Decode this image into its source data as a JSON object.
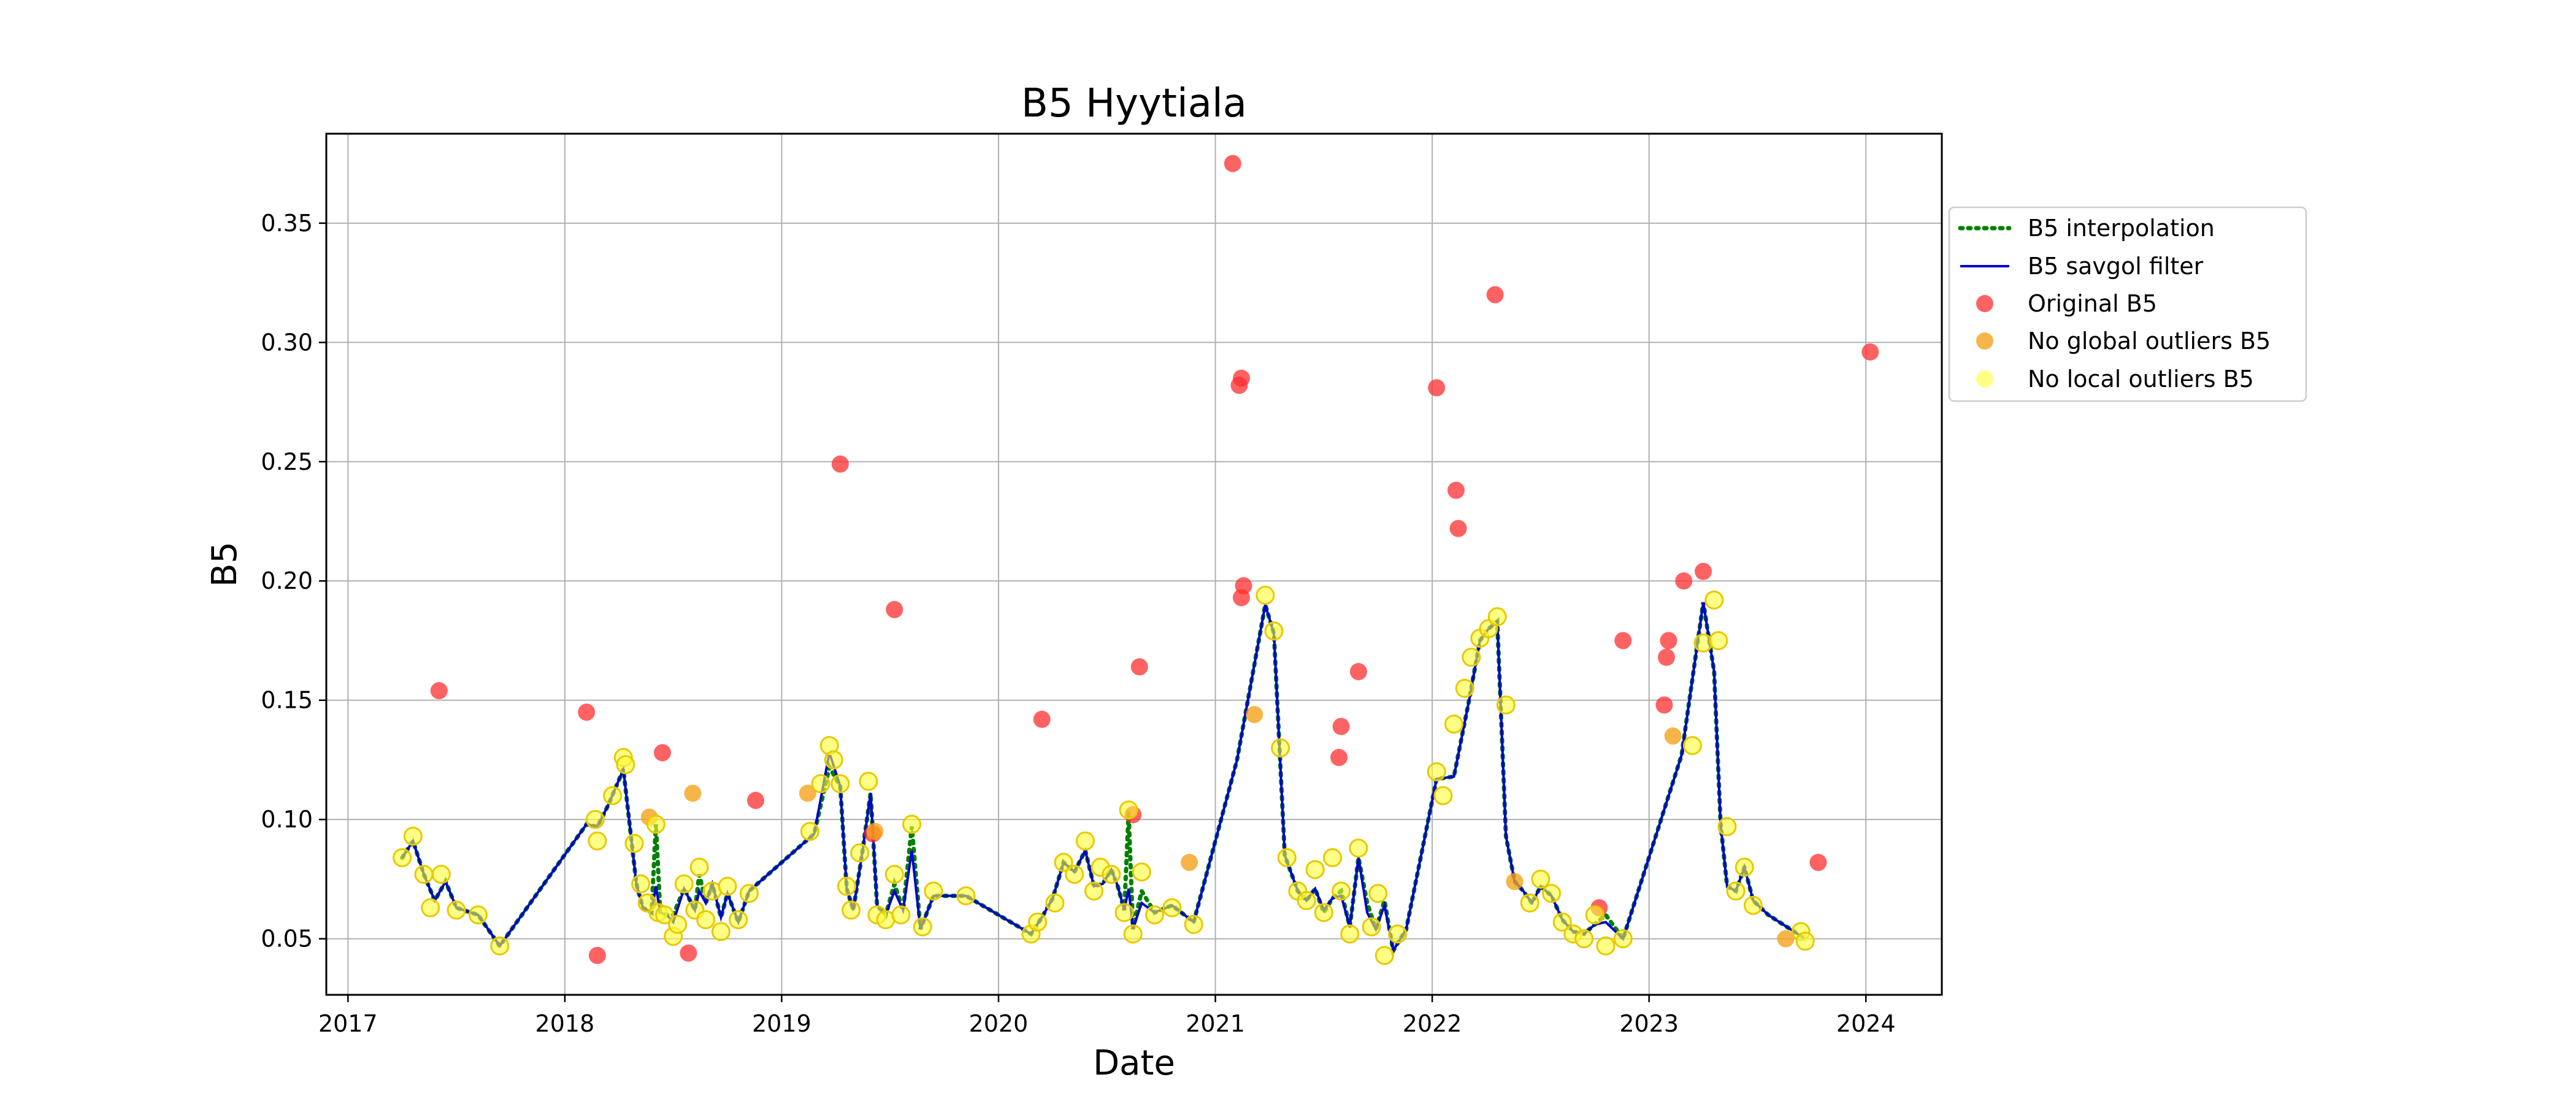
{
  "chart_data": {
    "type": "scatter",
    "title": "B5 Hyytiala",
    "xlabel": "Date",
    "ylabel": "B5",
    "xlim": [
      2016.9,
      2024.35
    ],
    "ylim": [
      0.0265,
      0.3875
    ],
    "x_ticks": [
      2017,
      2018,
      2019,
      2020,
      2021,
      2022,
      2023,
      2024
    ],
    "y_ticks": [
      0.05,
      0.1,
      0.15,
      0.2,
      0.25,
      0.3,
      0.35
    ],
    "x_tick_labels": [
      "2017",
      "2018",
      "2019",
      "2020",
      "2021",
      "2022",
      "2023",
      "2024"
    ],
    "y_tick_labels": [
      "0.05",
      "0.10",
      "0.15",
      "0.20",
      "0.25",
      "0.30",
      "0.35"
    ],
    "grid": true,
    "legend_position": "right-outside-top",
    "colors": {
      "interpolation": "#008000",
      "savgol": "#0000cc",
      "original": "#ff2d2d",
      "no_global": "#f5a21b",
      "no_local": "#ffff33"
    },
    "series": [
      {
        "name": "B5 interpolation",
        "style": "dotted-line",
        "x": [
          2017.25,
          2017.3,
          2017.35,
          2017.4,
          2017.45,
          2017.5,
          2017.6,
          2017.7,
          2018.1,
          2018.15,
          2018.2,
          2018.27,
          2018.33,
          2018.36,
          2018.4,
          2018.42,
          2018.44,
          2018.47,
          2018.5,
          2018.55,
          2018.6,
          2018.62,
          2018.65,
          2018.68,
          2018.72,
          2018.75,
          2018.8,
          2018.85,
          2019.15,
          2019.22,
          2019.27,
          2019.3,
          2019.33,
          2019.37,
          2019.41,
          2019.44,
          2019.48,
          2019.52,
          2019.56,
          2019.6,
          2019.64,
          2019.7,
          2019.85,
          2020.15,
          2020.2,
          2020.25,
          2020.3,
          2020.35,
          2020.4,
          2020.44,
          2020.48,
          2020.52,
          2020.55,
          2020.58,
          2020.6,
          2020.62,
          2020.66,
          2020.72,
          2020.8,
          2020.9,
          2021.1,
          2021.23,
          2021.27,
          2021.32,
          2021.38,
          2021.42,
          2021.46,
          2021.5,
          2021.54,
          2021.58,
          2021.62,
          2021.66,
          2021.7,
          2021.74,
          2021.78,
          2021.82,
          2021.88,
          2022.02,
          2022.1,
          2022.17,
          2022.22,
          2022.26,
          2022.3,
          2022.34,
          2022.38,
          2022.42,
          2022.46,
          2022.5,
          2022.55,
          2022.6,
          2022.65,
          2022.7,
          2022.75,
          2022.8,
          2022.88,
          2023.15,
          2023.25,
          2023.3,
          2023.33,
          2023.36,
          2023.4,
          2023.44,
          2023.48,
          2023.55,
          2023.72
        ],
        "values": [
          0.084,
          0.091,
          0.077,
          0.066,
          0.074,
          0.063,
          0.06,
          0.047,
          0.098,
          0.097,
          0.106,
          0.121,
          0.073,
          0.063,
          0.061,
          0.098,
          0.061,
          0.06,
          0.06,
          0.071,
          0.062,
          0.077,
          0.065,
          0.073,
          0.059,
          0.069,
          0.057,
          0.07,
          0.094,
          0.122,
          0.114,
          0.071,
          0.062,
          0.085,
          0.111,
          0.064,
          0.06,
          0.073,
          0.062,
          0.097,
          0.054,
          0.068,
          0.068,
          0.052,
          0.059,
          0.067,
          0.082,
          0.078,
          0.087,
          0.072,
          0.073,
          0.079,
          0.072,
          0.062,
          0.103,
          0.054,
          0.07,
          0.061,
          0.064,
          0.057,
          0.125,
          0.19,
          0.178,
          0.085,
          0.07,
          0.066,
          0.071,
          0.061,
          0.067,
          0.07,
          0.055,
          0.084,
          0.065,
          0.054,
          0.066,
          0.045,
          0.054,
          0.117,
          0.118,
          0.15,
          0.175,
          0.18,
          0.183,
          0.093,
          0.074,
          0.07,
          0.065,
          0.072,
          0.068,
          0.058,
          0.053,
          0.052,
          0.056,
          0.06,
          0.05,
          0.127,
          0.191,
          0.162,
          0.098,
          0.072,
          0.07,
          0.08,
          0.066,
          0.06,
          0.05
        ]
      },
      {
        "name": "B5 savgol filter",
        "style": "solid-line",
        "x": [
          2017.25,
          2017.3,
          2017.35,
          2017.4,
          2017.45,
          2017.5,
          2017.6,
          2017.7,
          2018.1,
          2018.15,
          2018.2,
          2018.27,
          2018.33,
          2018.36,
          2018.4,
          2018.42,
          2018.44,
          2018.47,
          2018.5,
          2018.55,
          2018.6,
          2018.62,
          2018.65,
          2018.68,
          2018.72,
          2018.75,
          2018.8,
          2018.85,
          2019.15,
          2019.22,
          2019.27,
          2019.3,
          2019.33,
          2019.37,
          2019.41,
          2019.44,
          2019.48,
          2019.52,
          2019.56,
          2019.6,
          2019.64,
          2019.7,
          2019.85,
          2020.15,
          2020.2,
          2020.25,
          2020.3,
          2020.35,
          2020.4,
          2020.44,
          2020.48,
          2020.52,
          2020.55,
          2020.58,
          2020.6,
          2020.62,
          2020.66,
          2020.72,
          2020.8,
          2020.9,
          2021.1,
          2021.23,
          2021.27,
          2021.32,
          2021.38,
          2021.42,
          2021.46,
          2021.5,
          2021.54,
          2021.58,
          2021.62,
          2021.66,
          2021.7,
          2021.74,
          2021.78,
          2021.82,
          2021.88,
          2022.02,
          2022.1,
          2022.17,
          2022.22,
          2022.26,
          2022.3,
          2022.34,
          2022.38,
          2022.42,
          2022.46,
          2022.5,
          2022.55,
          2022.6,
          2022.65,
          2022.7,
          2022.75,
          2022.8,
          2022.88,
          2023.15,
          2023.25,
          2023.3,
          2023.33,
          2023.36,
          2023.4,
          2023.44,
          2023.48,
          2023.55,
          2023.72
        ],
        "values": [
          0.084,
          0.091,
          0.077,
          0.066,
          0.074,
          0.063,
          0.06,
          0.047,
          0.098,
          0.097,
          0.106,
          0.121,
          0.073,
          0.063,
          0.061,
          0.072,
          0.061,
          0.06,
          0.057,
          0.071,
          0.062,
          0.07,
          0.065,
          0.073,
          0.059,
          0.069,
          0.057,
          0.07,
          0.094,
          0.128,
          0.114,
          0.071,
          0.062,
          0.085,
          0.111,
          0.064,
          0.06,
          0.07,
          0.062,
          0.087,
          0.054,
          0.068,
          0.068,
          0.052,
          0.059,
          0.067,
          0.082,
          0.078,
          0.087,
          0.072,
          0.073,
          0.079,
          0.072,
          0.062,
          0.071,
          0.054,
          0.065,
          0.061,
          0.064,
          0.057,
          0.125,
          0.19,
          0.178,
          0.085,
          0.07,
          0.066,
          0.071,
          0.062,
          0.067,
          0.068,
          0.055,
          0.084,
          0.061,
          0.054,
          0.064,
          0.045,
          0.054,
          0.117,
          0.118,
          0.15,
          0.175,
          0.18,
          0.183,
          0.093,
          0.074,
          0.07,
          0.065,
          0.072,
          0.068,
          0.058,
          0.053,
          0.052,
          0.056,
          0.057,
          0.05,
          0.127,
          0.191,
          0.162,
          0.098,
          0.072,
          0.07,
          0.08,
          0.066,
          0.06,
          0.05
        ]
      },
      {
        "name": "Original B5",
        "style": "points",
        "x": [
          2017.42,
          2018.1,
          2018.15,
          2018.45,
          2018.57,
          2018.88,
          2019.27,
          2019.52,
          2020.2,
          2020.65,
          2021.08,
          2021.11,
          2021.12,
          2021.13,
          2021.12,
          2021.57,
          2021.58,
          2021.66,
          2022.02,
          2022.11,
          2022.12,
          2022.29,
          2022.77,
          2022.88,
          2023.07,
          2023.08,
          2023.09,
          2023.16,
          2023.25,
          2023.78,
          2024.02,
          2019.42,
          2020.62
        ],
        "values": [
          0.154,
          0.145,
          0.043,
          0.128,
          0.044,
          0.108,
          0.249,
          0.188,
          0.142,
          0.164,
          0.375,
          0.282,
          0.285,
          0.198,
          0.193,
          0.126,
          0.139,
          0.162,
          0.281,
          0.238,
          0.222,
          0.32,
          0.063,
          0.175,
          0.148,
          0.168,
          0.175,
          0.2,
          0.204,
          0.082,
          0.296,
          0.094,
          0.102
        ]
      },
      {
        "name": "No global outliers B5",
        "style": "points",
        "x": [
          2018.39,
          2018.59,
          2019.12,
          2019.43,
          2020.88,
          2021.18,
          2022.38,
          2023.11,
          2023.63
        ],
        "values": [
          0.101,
          0.111,
          0.111,
          0.095,
          0.082,
          0.144,
          0.074,
          0.135,
          0.05
        ]
      },
      {
        "name": "No local outliers B5",
        "style": "points",
        "x": [
          2017.25,
          2017.3,
          2017.35,
          2017.38,
          2017.43,
          2017.5,
          2017.6,
          2017.7,
          2018.14,
          2018.15,
          2018.22,
          2018.27,
          2018.28,
          2018.32,
          2018.35,
          2018.38,
          2018.42,
          2018.43,
          2018.46,
          2018.5,
          2018.52,
          2018.55,
          2018.6,
          2018.62,
          2018.65,
          2018.68,
          2018.72,
          2018.75,
          2018.8,
          2018.85,
          2019.13,
          2019.18,
          2019.22,
          2019.24,
          2019.27,
          2019.3,
          2019.32,
          2019.36,
          2019.4,
          2019.44,
          2019.48,
          2019.52,
          2019.55,
          2019.6,
          2019.65,
          2019.7,
          2019.85,
          2020.15,
          2020.18,
          2020.26,
          2020.3,
          2020.35,
          2020.4,
          2020.44,
          2020.47,
          2020.52,
          2020.58,
          2020.6,
          2020.62,
          2020.66,
          2020.72,
          2020.8,
          2020.9,
          2021.23,
          2021.27,
          2021.3,
          2021.33,
          2021.38,
          2021.42,
          2021.46,
          2021.5,
          2021.54,
          2021.58,
          2021.62,
          2021.66,
          2021.72,
          2021.75,
          2021.78,
          2021.84,
          2022.02,
          2022.05,
          2022.1,
          2022.15,
          2022.18,
          2022.22,
          2022.26,
          2022.3,
          2022.34,
          2022.45,
          2022.5,
          2022.55,
          2022.6,
          2022.65,
          2022.7,
          2022.75,
          2022.8,
          2022.88,
          2023.2,
          2023.25,
          2023.3,
          2023.32,
          2023.36,
          2023.4,
          2023.44,
          2023.48,
          2023.7,
          2023.72
        ],
        "values": [
          0.084,
          0.093,
          0.077,
          0.063,
          0.077,
          0.062,
          0.06,
          0.047,
          0.1,
          0.091,
          0.11,
          0.126,
          0.123,
          0.09,
          0.073,
          0.065,
          0.098,
          0.061,
          0.06,
          0.051,
          0.056,
          0.073,
          0.062,
          0.08,
          0.058,
          0.07,
          0.053,
          0.072,
          0.058,
          0.069,
          0.095,
          0.115,
          0.131,
          0.125,
          0.115,
          0.072,
          0.062,
          0.086,
          0.116,
          0.06,
          0.058,
          0.077,
          0.06,
          0.098,
          0.055,
          0.07,
          0.068,
          0.052,
          0.057,
          0.065,
          0.082,
          0.077,
          0.091,
          0.07,
          0.08,
          0.077,
          0.061,
          0.104,
          0.052,
          0.078,
          0.06,
          0.063,
          0.056,
          0.194,
          0.179,
          0.13,
          0.084,
          0.07,
          0.066,
          0.079,
          0.061,
          0.084,
          0.07,
          0.052,
          0.088,
          0.055,
          0.069,
          0.043,
          0.052,
          0.12,
          0.11,
          0.14,
          0.155,
          0.168,
          0.176,
          0.18,
          0.185,
          0.148,
          0.065,
          0.075,
          0.069,
          0.057,
          0.052,
          0.05,
          0.06,
          0.047,
          0.05,
          0.131,
          0.174,
          0.192,
          0.175,
          0.097,
          0.07,
          0.08,
          0.064,
          0.053,
          0.049
        ]
      }
    ]
  }
}
